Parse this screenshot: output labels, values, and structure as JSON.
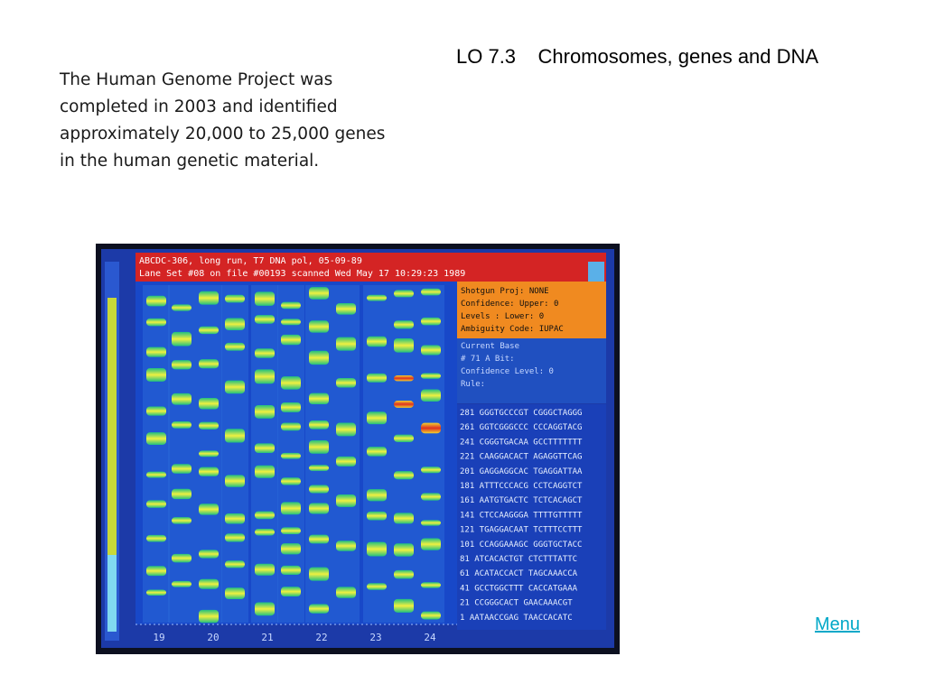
{
  "title": "LO 7.3    Chromosomes, genes and DNA",
  "intro": {
    "lines": [
      "The Human Genome Project was",
      "completed in 2003 and identified",
      "approximately 20,000 to 25,000 genes",
      "in the human genetic material."
    ]
  },
  "figure": {
    "header": [
      "ABCDC-306, long run, T7 DNA pol, 05-09-89",
      "Lane Set #08 on file #00193 scanned Wed May 17 10:29:23 1989"
    ],
    "info_box": [
      "Shotgun Proj: NONE",
      "Confidence: Upper: 0",
      "Levels    : Lower: 0",
      "Ambiguity Code: IUPAC"
    ],
    "status_box": [
      "Current Base",
      "# 71 A Bit:",
      "Confidence Level: 0",
      "Rule:"
    ],
    "sequence_rows": [
      "281 GGGTGCCCGT CGGGCTAGGG",
      "261 GGTCGGGCCC CCCAGGTACG",
      "241 CGGGTGACAA GCCTTTTTTT",
      "221 CAAGGACACT AGAGGTTCAG",
      "201 GAGGAGGCAC TGAGGATTAA",
      "181 ATTTCCCACG CCTCAGGTCT",
      "161 AATGTGACTC TCTCACAGCT",
      "141 CTCCAAGGGA TTTTGTTTTT",
      "121 TGAGGACAAT TCTTTCCTTT",
      "101 CCAGGAAAGC GGGTGCTACC",
      " 81 ATCACACTGT CTCTTTATTC",
      " 61 ACATACCACT TAGCAAACCA",
      " 41 GCCTGGCTTT CACCATGAAA",
      " 21 CCGGGCACT GAACAAACGT",
      "  1 AATAACCGAG TAACCACATC"
    ],
    "lane_numbers": [
      "19",
      "20",
      "21",
      "22",
      "23",
      "24"
    ]
  },
  "menu": "Menu"
}
